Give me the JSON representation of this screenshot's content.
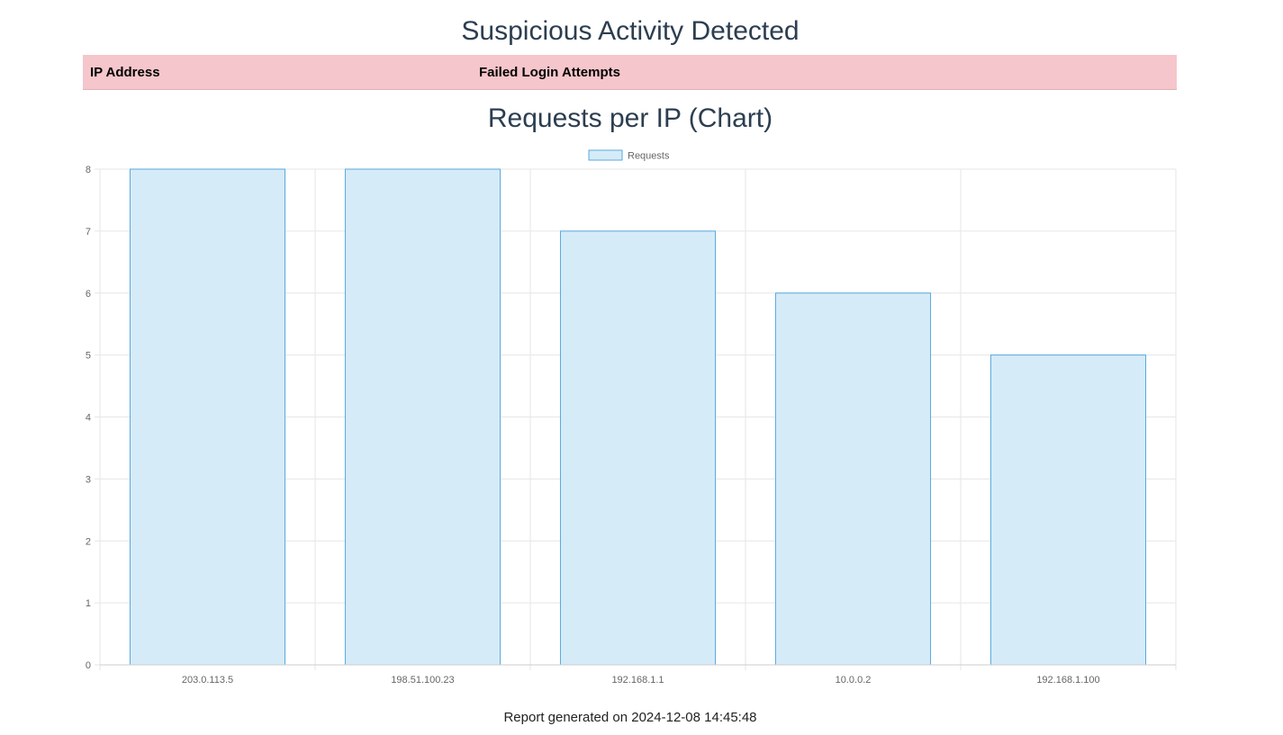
{
  "report": {
    "title": "Suspicious Activity Detected",
    "table": {
      "headers": [
        "IP Address",
        "Failed Login Attempts"
      ],
      "rows": []
    },
    "footer": "Report generated on 2024-12-08 14:45:48"
  },
  "chart_data": {
    "type": "bar",
    "title": "Requests per IP (Chart)",
    "categories": [
      "203.0.113.5",
      "198.51.100.23",
      "192.168.1.1",
      "10.0.0.2",
      "192.168.1.100"
    ],
    "series": [
      {
        "name": "Requests",
        "values": [
          8,
          8,
          7,
          6,
          5
        ]
      }
    ],
    "xlabel": "",
    "ylabel": "",
    "ylim": [
      0,
      8
    ],
    "yticks": [
      0,
      1,
      2,
      3,
      4,
      5,
      6,
      7,
      8
    ],
    "grid": true,
    "legend": "top-center",
    "colors": {
      "bar_fill": "#d6ebf8",
      "bar_border": "#58a9dd",
      "grid": "#e6e6e6",
      "tick_text": "#666666"
    }
  }
}
